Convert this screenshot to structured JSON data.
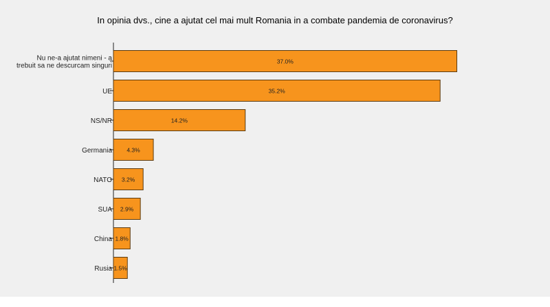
{
  "chart_data": {
    "type": "bar",
    "orientation": "horizontal",
    "title": "In opinia dvs., cine a ajutat cel mai mult Romania in a combate pandemia de coronavirus?",
    "categories": [
      [
        "Nu ne-a ajutat nimeni - a",
        "trebuit sa ne descurcam singuri"
      ],
      [
        "UE"
      ],
      [
        "NS/NR"
      ],
      [
        "Germania"
      ],
      [
        "NATO"
      ],
      [
        "SUA"
      ],
      [
        "China"
      ],
      [
        "Rusia"
      ]
    ],
    "values": [
      37.0,
      35.2,
      14.2,
      4.3,
      3.2,
      2.9,
      1.8,
      1.5
    ],
    "value_labels": [
      "37.0%",
      "35.2%",
      "14.2%",
      "4.3%",
      "3.2%",
      "2.9%",
      "1.8%",
      "1.5%"
    ],
    "xlim": [
      0,
      40
    ],
    "grid": false,
    "bar_color": "#f7941d",
    "bar_edge_color": "#5a3a10"
  }
}
